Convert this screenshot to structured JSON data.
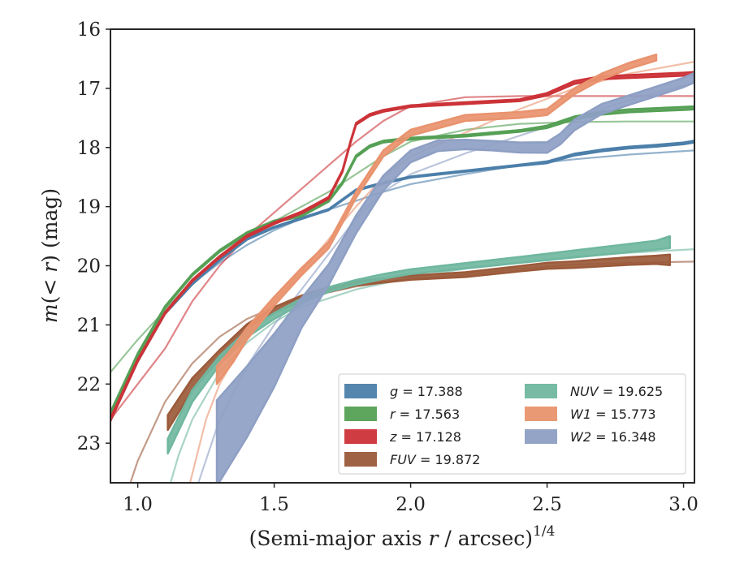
{
  "chart_data": {
    "type": "line",
    "ylabel_parts": {
      "m": "m",
      "args": "(< ",
      "r": "r",
      "close": ")",
      "unit": " (mag)"
    },
    "xlabel_parts": {
      "pre": "(Semi-major axis ",
      "r": "r",
      "post": " / arcsec)",
      "exp": "1/4"
    },
    "xlim": [
      0.9,
      3.04
    ],
    "ylim": [
      23.67,
      16.0
    ],
    "y_inverted": true,
    "xticks": [
      1.0,
      1.5,
      2.0,
      2.5,
      3.0
    ],
    "xtick_labels": [
      "1.0",
      "1.5",
      "2.0",
      "2.5",
      "3.0"
    ],
    "yticks": [
      16,
      17,
      18,
      19,
      20,
      21,
      22,
      23
    ],
    "ytick_labels": [
      "16",
      "17",
      "18",
      "19",
      "20",
      "21",
      "22",
      "23"
    ],
    "legend_position": "lower-right",
    "legend": [
      {
        "band": "g",
        "value": "17.388",
        "color": "#4c7faa"
      },
      {
        "band": "r",
        "value": "17.563",
        "color": "#55a055"
      },
      {
        "band": "z",
        "value": "17.128",
        "color": "#cc3338"
      },
      {
        "band": "FUV",
        "value": "19.872",
        "color": "#9b5a3a"
      },
      {
        "band": "NUV",
        "value": "19.625",
        "color": "#70b7a0"
      },
      {
        "band": "W1",
        "value": "15.773",
        "color": "#e9936e"
      },
      {
        "band": "W2",
        "value": "16.348",
        "color": "#8e9fc4"
      }
    ],
    "series": [
      {
        "band": "g",
        "color": "#4c7faa",
        "profile": {
          "x": [
            0.9,
            1.0,
            1.1,
            1.2,
            1.3,
            1.4,
            1.5,
            1.6,
            1.7,
            1.8,
            1.9,
            2.0,
            2.1,
            2.2,
            2.3,
            2.4,
            2.5,
            2.6,
            2.7,
            2.8,
            2.9,
            3.0,
            3.04
          ],
          "y": [
            22.6,
            21.6,
            20.8,
            20.3,
            19.9,
            19.55,
            19.35,
            19.2,
            19.05,
            18.72,
            18.6,
            18.5,
            18.45,
            18.4,
            18.35,
            18.3,
            18.25,
            18.12,
            18.05,
            18.0,
            17.97,
            17.93,
            17.9
          ],
          "width_mag": [
            0.05,
            0.04,
            0.03,
            0.03,
            0.02,
            0.02,
            0.02,
            0.02,
            0.02,
            0.02,
            0.02,
            0.02,
            0.02,
            0.02,
            0.02,
            0.02,
            0.03,
            0.03,
            0.03,
            0.03,
            0.03,
            0.03,
            0.03
          ]
        },
        "model": {
          "x": [
            0.9,
            1.0,
            1.1,
            1.2,
            1.3,
            1.4,
            1.5,
            1.6,
            1.7,
            1.8,
            1.9,
            2.0,
            2.2,
            2.4,
            2.6,
            2.8,
            3.04
          ],
          "y": [
            22.6,
            21.6,
            20.8,
            20.3,
            19.95,
            19.65,
            19.4,
            19.2,
            19.05,
            18.9,
            18.75,
            18.62,
            18.45,
            18.3,
            18.2,
            18.12,
            18.05
          ]
        }
      },
      {
        "band": "r",
        "color": "#55a055",
        "profile": {
          "x": [
            0.9,
            1.0,
            1.1,
            1.2,
            1.3,
            1.4,
            1.5,
            1.6,
            1.7,
            1.75,
            1.8,
            1.85,
            1.9,
            2.0,
            2.2,
            2.4,
            2.5,
            2.6,
            2.7,
            2.8,
            2.9,
            3.0,
            3.04
          ],
          "y": [
            22.5,
            21.5,
            20.7,
            20.15,
            19.75,
            19.45,
            19.25,
            19.15,
            18.9,
            18.6,
            18.15,
            17.98,
            17.9,
            17.85,
            17.8,
            17.72,
            17.65,
            17.5,
            17.42,
            17.38,
            17.36,
            17.34,
            17.33
          ],
          "width_mag": [
            0.05,
            0.04,
            0.03,
            0.03,
            0.03,
            0.03,
            0.03,
            0.03,
            0.03,
            0.03,
            0.03,
            0.03,
            0.03,
            0.03,
            0.03,
            0.03,
            0.04,
            0.05,
            0.05,
            0.05,
            0.05,
            0.05,
            0.05
          ]
        },
        "model": {
          "x": [
            0.9,
            1.0,
            1.1,
            1.2,
            1.3,
            1.4,
            1.5,
            1.6,
            1.7,
            1.8,
            1.9,
            2.0,
            2.2,
            2.4,
            2.6,
            2.8,
            3.04
          ],
          "y": [
            21.8,
            21.25,
            20.75,
            20.25,
            19.85,
            19.5,
            19.25,
            19.0,
            18.75,
            18.45,
            18.15,
            17.9,
            17.7,
            17.6,
            17.57,
            17.56,
            17.56
          ]
        }
      },
      {
        "band": "z",
        "color": "#cc3338",
        "profile": {
          "x": [
            0.9,
            1.0,
            1.1,
            1.2,
            1.3,
            1.4,
            1.5,
            1.6,
            1.7,
            1.75,
            1.78,
            1.8,
            1.85,
            1.9,
            2.0,
            2.2,
            2.4,
            2.5,
            2.6,
            2.7,
            2.8,
            2.9,
            3.0,
            3.04
          ],
          "y": [
            22.6,
            21.6,
            20.8,
            20.25,
            19.85,
            19.5,
            19.28,
            19.1,
            18.85,
            18.4,
            17.9,
            17.6,
            17.45,
            17.38,
            17.3,
            17.25,
            17.2,
            17.1,
            16.9,
            16.82,
            16.8,
            16.78,
            16.76,
            16.75
          ],
          "width_mag": [
            0.05,
            0.04,
            0.03,
            0.03,
            0.03,
            0.03,
            0.03,
            0.03,
            0.03,
            0.03,
            0.03,
            0.03,
            0.03,
            0.03,
            0.03,
            0.03,
            0.03,
            0.04,
            0.05,
            0.05,
            0.05,
            0.05,
            0.05,
            0.05
          ]
        },
        "model": {
          "x": [
            0.9,
            1.1,
            1.2,
            1.3,
            1.4,
            1.5,
            1.6,
            1.7,
            1.8,
            1.9,
            2.0,
            2.2,
            2.4,
            2.6,
            2.8,
            3.04
          ],
          "y": [
            22.6,
            21.4,
            20.6,
            20.0,
            19.5,
            19.1,
            18.7,
            18.3,
            17.9,
            17.55,
            17.3,
            17.15,
            17.13,
            17.13,
            17.13,
            17.13
          ]
        }
      },
      {
        "band": "FUV",
        "color": "#9b5a3a",
        "profile": {
          "x": [
            1.11,
            1.2,
            1.3,
            1.4,
            1.5,
            1.6,
            1.7,
            1.8,
            1.9,
            2.0,
            2.2,
            2.4,
            2.5,
            2.6,
            2.7,
            2.8,
            2.9,
            2.95
          ],
          "y": [
            22.65,
            22.0,
            21.5,
            21.05,
            20.75,
            20.55,
            20.4,
            20.3,
            20.25,
            20.2,
            20.15,
            20.05,
            20.0,
            19.98,
            19.95,
            19.92,
            19.9,
            19.9
          ],
          "width_mag": [
            0.25,
            0.2,
            0.15,
            0.12,
            0.1,
            0.09,
            0.08,
            0.07,
            0.07,
            0.07,
            0.08,
            0.09,
            0.1,
            0.11,
            0.12,
            0.13,
            0.14,
            0.18
          ]
        },
        "model": {
          "x": [
            0.92,
            1.0,
            1.1,
            1.2,
            1.3,
            1.4,
            1.5,
            1.6,
            1.8,
            2.0,
            2.2,
            2.4,
            2.6,
            2.8,
            3.04
          ],
          "y": [
            24.4,
            23.3,
            22.3,
            21.65,
            21.2,
            20.9,
            20.7,
            20.55,
            20.35,
            20.22,
            20.15,
            20.05,
            19.98,
            19.95,
            19.93
          ]
        }
      },
      {
        "band": "NUV",
        "color": "#70b7a0",
        "profile": {
          "x": [
            1.11,
            1.2,
            1.3,
            1.4,
            1.5,
            1.6,
            1.7,
            1.8,
            1.9,
            2.0,
            2.2,
            2.4,
            2.5,
            2.6,
            2.7,
            2.8,
            2.9,
            2.95
          ],
          "y": [
            23.05,
            22.2,
            21.6,
            21.15,
            20.85,
            20.6,
            20.4,
            20.28,
            20.18,
            20.1,
            20.0,
            19.9,
            19.85,
            19.8,
            19.75,
            19.7,
            19.65,
            19.6
          ],
          "width_mag": [
            0.25,
            0.2,
            0.15,
            0.12,
            0.1,
            0.09,
            0.08,
            0.08,
            0.08,
            0.08,
            0.09,
            0.1,
            0.11,
            0.12,
            0.13,
            0.14,
            0.15,
            0.2
          ]
        },
        "model": {
          "x": [
            1.08,
            1.15,
            1.2,
            1.3,
            1.4,
            1.5,
            1.6,
            1.8,
            2.0,
            2.2,
            2.4,
            2.6,
            2.8,
            3.04
          ],
          "y": [
            24.3,
            23.2,
            22.6,
            21.8,
            21.3,
            20.95,
            20.7,
            20.4,
            20.2,
            20.05,
            19.95,
            19.85,
            19.78,
            19.72
          ]
        }
      },
      {
        "band": "W1",
        "color": "#e9936e",
        "profile": {
          "x": [
            1.29,
            1.35,
            1.4,
            1.5,
            1.6,
            1.7,
            1.8,
            1.9,
            2.0,
            2.2,
            2.4,
            2.5,
            2.6,
            2.7,
            2.8,
            2.9
          ],
          "y": [
            21.85,
            21.5,
            21.15,
            20.6,
            20.1,
            19.65,
            18.8,
            18.1,
            17.75,
            17.5,
            17.45,
            17.4,
            17.05,
            16.8,
            16.62,
            16.48
          ],
          "width_mag": [
            0.3,
            0.25,
            0.2,
            0.15,
            0.12,
            0.1,
            0.1,
            0.1,
            0.1,
            0.1,
            0.1,
            0.1,
            0.1,
            0.1,
            0.1,
            0.1
          ]
        },
        "model": {
          "x": [
            1.19,
            1.25,
            1.3,
            1.4,
            1.5,
            1.6,
            1.7,
            1.8,
            1.9,
            2.0,
            2.2,
            2.4,
            2.6,
            2.8,
            3.04
          ],
          "y": [
            23.7,
            22.6,
            22.0,
            21.2,
            20.6,
            20.1,
            19.55,
            19.0,
            18.5,
            18.15,
            17.75,
            17.35,
            17.0,
            16.75,
            16.55
          ]
        }
      },
      {
        "band": "W2",
        "color": "#8e9fc4",
        "profile": {
          "x": [
            1.29,
            1.4,
            1.5,
            1.6,
            1.7,
            1.8,
            1.9,
            2.0,
            2.1,
            2.2,
            2.3,
            2.4,
            2.5,
            2.55,
            2.6,
            2.7,
            2.8,
            2.9,
            3.0,
            3.04
          ],
          "y": [
            23.0,
            22.3,
            21.6,
            20.8,
            20.15,
            19.3,
            18.6,
            18.15,
            17.97,
            17.95,
            17.97,
            18.0,
            18.0,
            17.85,
            17.62,
            17.35,
            17.2,
            17.05,
            16.9,
            16.82
          ],
          "width_mag": [
            1.45,
            1.2,
            0.9,
            0.5,
            0.35,
            0.3,
            0.25,
            0.2,
            0.18,
            0.16,
            0.16,
            0.17,
            0.18,
            0.18,
            0.18,
            0.17,
            0.16,
            0.16,
            0.16,
            0.16
          ]
        },
        "model": {
          "x": [
            1.22,
            1.3,
            1.4,
            1.5,
            1.6,
            1.7,
            1.8,
            1.9,
            2.0,
            2.2,
            2.4,
            2.6,
            2.8,
            3.04
          ],
          "y": [
            23.7,
            22.6,
            21.7,
            21.0,
            20.4,
            19.8,
            19.2,
            18.75,
            18.45,
            18.1,
            17.8,
            17.5,
            17.2,
            16.9
          ]
        }
      }
    ]
  }
}
